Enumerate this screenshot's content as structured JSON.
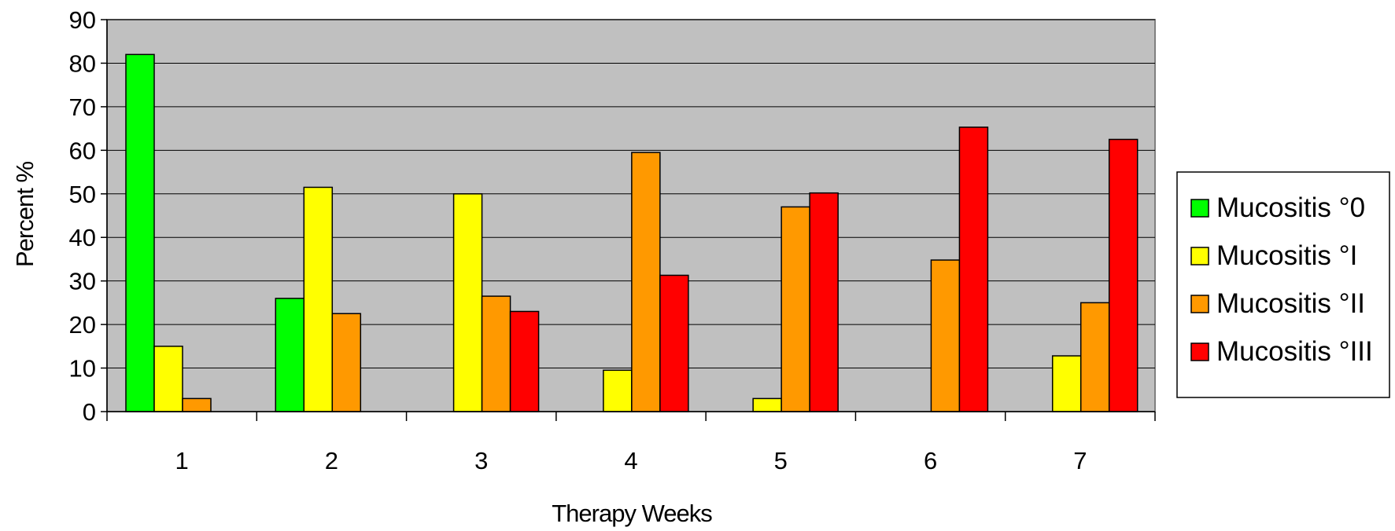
{
  "chart_data": {
    "type": "bar",
    "title": "",
    "xlabel": "Therapy Weeks",
    "ylabel": "Percent %",
    "ylim": [
      0,
      90
    ],
    "yticks": [
      0,
      10,
      20,
      30,
      40,
      50,
      60,
      70,
      80,
      90
    ],
    "categories": [
      "1",
      "2",
      "3",
      "4",
      "5",
      "6",
      "7"
    ],
    "grid": true,
    "legend_position": "right",
    "plot_background": "#C0C0C0",
    "series": [
      {
        "name": "Mucositis °0",
        "color": "#00FF00",
        "values": [
          82,
          26,
          0,
          0,
          0,
          0,
          0
        ]
      },
      {
        "name": "Mucositis °I",
        "color": "#FFFF00",
        "values": [
          15,
          51.5,
          50,
          9.5,
          3,
          0,
          12.8
        ]
      },
      {
        "name": "Mucositis °II",
        "color": "#FF9900",
        "values": [
          3,
          22.5,
          26.5,
          59.5,
          47,
          34.8,
          25
        ]
      },
      {
        "name": "Mucositis °III",
        "color": "#FF0000",
        "values": [
          0,
          0,
          23,
          31.3,
          50.2,
          65.3,
          62.5
        ]
      }
    ]
  }
}
